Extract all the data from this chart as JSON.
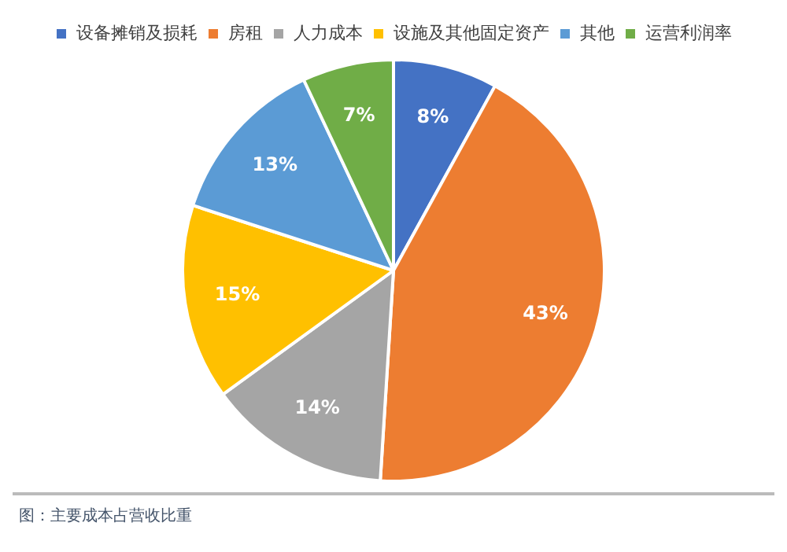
{
  "chart_data": {
    "type": "pie",
    "categories": [
      "设备摊销及损耗",
      "房租",
      "人力成本",
      "设施及其他固定资产",
      "其他",
      "运营利润率"
    ],
    "values": [
      8,
      43,
      14,
      15,
      13,
      7
    ],
    "colors": [
      "#4472c4",
      "#ed7d31",
      "#a5a5a5",
      "#ffc000",
      "#5b9bd5",
      "#70ad47"
    ],
    "value_labels": [
      "8%",
      "43%",
      "14%",
      "15%",
      "13%",
      "7%"
    ],
    "legend": "top",
    "annotations": [
      "图：主要成本占营收比重"
    ]
  }
}
